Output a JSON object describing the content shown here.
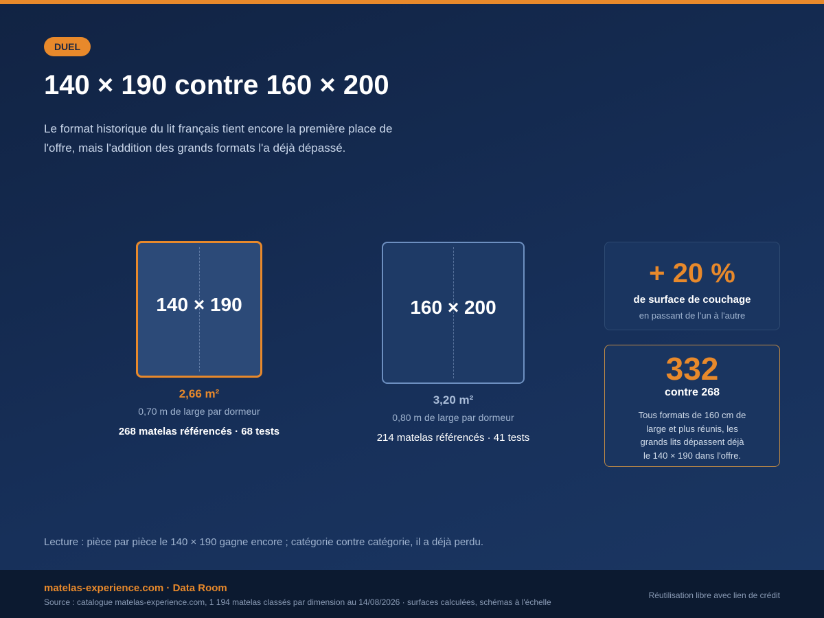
{
  "header": {
    "badge": "DUEL",
    "title": "140 × 190 contre 160 × 200",
    "subtitle_lines": [
      "Le format historique du lit français tient encore la première place de",
      "l'offre, mais l'addition des grands formats l'a déjà dépassé."
    ]
  },
  "beds": [
    {
      "label": "140 × 190",
      "surface": "2,66 m²",
      "width_note": "0,70 m de large par dormeur",
      "count": "268 matelas référencés · 68 tests"
    },
    {
      "label": "160 × 200",
      "surface": "3,20 m²",
      "width_note": "0,80 m de large par dormeur",
      "count": "214 matelas référencés · 41 tests"
    }
  ],
  "cards": [
    {
      "big": "+ 20 %",
      "line": "de surface de couchage",
      "note": "en passant de l'un à l'autre"
    },
    {
      "big": "332",
      "line": "contre 268",
      "note_lines": [
        "Tous formats de 160 cm de",
        "large et plus réunis, les",
        "grands lits dépassent déjà",
        "le 140 × 190 dans l'offre."
      ]
    }
  ],
  "reading": "Lecture : pièce par pièce le 140 × 190 gagne encore ; catégorie contre catégorie, il a déjà perdu.",
  "footer": {
    "brand": "matelas-experience.com · Data Room",
    "source": "Source : catalogue matelas-experience.com, 1 194 matelas classés par dimension au 14/08/2026 · surfaces calculées, schémas à l'échelle",
    "license": "Réutilisation libre avec lien de crédit"
  }
}
